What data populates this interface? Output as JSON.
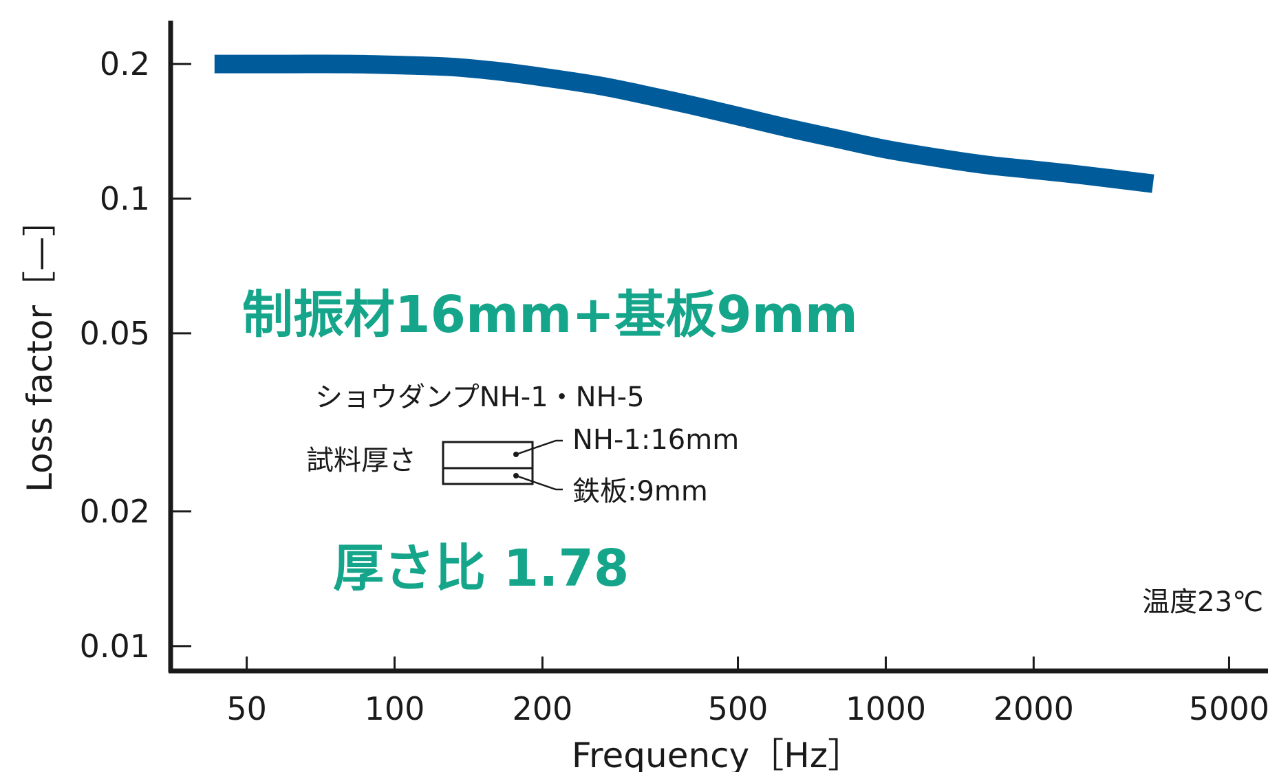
{
  "chart_data": {
    "type": "line",
    "x_scale": "log",
    "y_scale": "log",
    "xlim": [
      35,
      6000
    ],
    "ylim": [
      0.0088,
      0.25
    ],
    "xticks": [
      50,
      100,
      200,
      500,
      1000,
      2000,
      5000
    ],
    "xtick_labels": [
      "50",
      "100",
      "200",
      "500",
      "1000",
      "2000",
      "5000"
    ],
    "yticks": [
      0.2,
      0.1,
      0.05,
      0.02,
      0.01
    ],
    "ytick_labels": [
      "0.2",
      "0.1",
      "0.05",
      "0.02",
      "0.01"
    ],
    "xlabel": "Frequency［Hz］",
    "ylabel": "Loss factor［—］",
    "grid": false,
    "series": [
      {
        "color": "#005b9a",
        "x": [
          43,
          60,
          80,
          100,
          130,
          160,
          200,
          260,
          320,
          400,
          500,
          630,
          800,
          1000,
          1300,
          1600,
          2000,
          2500,
          3500
        ],
        "y": [
          0.2,
          0.2,
          0.2,
          0.199,
          0.197,
          0.193,
          0.187,
          0.179,
          0.171,
          0.162,
          0.153,
          0.144,
          0.136,
          0.129,
          0.123,
          0.119,
          0.116,
          0.113,
          0.108
        ]
      }
    ],
    "annotations": {
      "title": "制振材16mm+基板9mm",
      "ratio": "厚さ比 1.78",
      "product": "ショウダンプNH-1・NH-5",
      "sample_label": "試料厚さ",
      "layer_top": "NH-1:16mm",
      "layer_bottom": "鉄板:9mm",
      "temperature": "温度23℃"
    },
    "accent_color": "#14a58a"
  }
}
